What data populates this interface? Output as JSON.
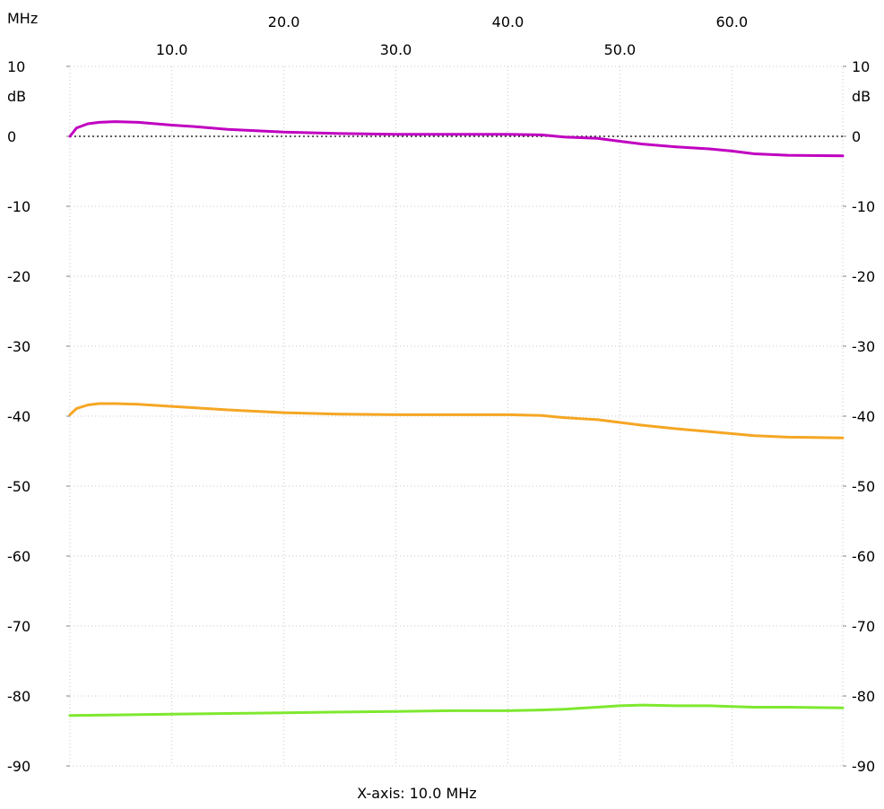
{
  "chart_data": {
    "type": "line",
    "x_unit": "MHz",
    "y_unit": "dB",
    "xlim": [
      0.9,
      69.9
    ],
    "ylim": [
      -90,
      10
    ],
    "x_ticks_top_row": [
      "20.0",
      "40.0",
      "60.0"
    ],
    "x_tick_values_top_row": [
      20,
      40,
      60
    ],
    "x_ticks_bottom_row": [
      "10.0",
      "30.0",
      "50.0"
    ],
    "x_tick_values_bottom_row": [
      10,
      30,
      50
    ],
    "y_ticks": [
      "10",
      "0",
      "-10",
      "-20",
      "-30",
      "-40",
      "-50",
      "-60",
      "-70",
      "-80",
      "-90"
    ],
    "y_tick_values": [
      10,
      0,
      -10,
      -20,
      -30,
      -40,
      -50,
      -60,
      -70,
      -80,
      -90
    ],
    "reference_line_y": 0,
    "grid": true,
    "caption": "X-axis: 10.0 MHz",
    "series": [
      {
        "color": "#c000c0",
        "x": [
          0.9,
          1.5,
          2.5,
          3.5,
          5,
          7,
          10,
          12,
          15,
          20,
          25,
          30,
          35,
          40,
          43,
          45,
          48,
          50,
          52,
          55,
          58,
          60,
          62,
          65,
          69.9
        ],
        "y": [
          0,
          1.2,
          1.8,
          2.0,
          2.1,
          2.0,
          1.6,
          1.4,
          1.0,
          0.6,
          0.4,
          0.3,
          0.3,
          0.3,
          0.2,
          -0.1,
          -0.3,
          -0.7,
          -1.1,
          -1.5,
          -1.8,
          -2.1,
          -2.5,
          -2.7,
          -2.8
        ]
      },
      {
        "color": "#f5a623",
        "x": [
          0.9,
          1.5,
          2.5,
          3.5,
          5,
          7,
          10,
          12,
          15,
          20,
          25,
          30,
          35,
          40,
          43,
          45,
          48,
          50,
          52,
          55,
          58,
          60,
          62,
          65,
          69.9
        ],
        "y": [
          -39.8,
          -38.9,
          -38.4,
          -38.2,
          -38.2,
          -38.3,
          -38.6,
          -38.8,
          -39.1,
          -39.5,
          -39.7,
          -39.8,
          -39.8,
          -39.8,
          -39.9,
          -40.2,
          -40.5,
          -40.9,
          -41.3,
          -41.8,
          -42.2,
          -42.5,
          -42.8,
          -43.0,
          -43.1
        ]
      },
      {
        "color": "#7ee82f",
        "x": [
          0.9,
          5,
          10,
          15,
          20,
          25,
          30,
          35,
          40,
          43,
          45,
          48,
          50,
          52,
          55,
          58,
          60,
          62,
          65,
          69.9
        ],
        "y": [
          -82.8,
          -82.7,
          -82.6,
          -82.5,
          -82.4,
          -82.3,
          -82.2,
          -82.1,
          -82.1,
          -82.0,
          -81.9,
          -81.6,
          -81.4,
          -81.3,
          -81.4,
          -81.4,
          -81.5,
          -81.6,
          -81.6,
          -81.7
        ]
      }
    ]
  }
}
